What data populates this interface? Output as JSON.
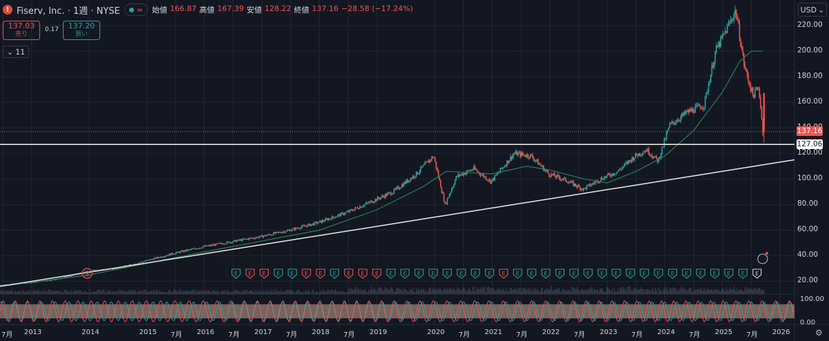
{
  "header": {
    "symbol_icon": "!",
    "title": "Fiserv, Inc. · 1週 · NYSE",
    "market_status": "≈",
    "ohlc": [
      {
        "k": "始値",
        "v": "166.87"
      },
      {
        "k": "高値",
        "v": "167.39"
      },
      {
        "k": "安値",
        "v": "128.22"
      },
      {
        "k": "終値",
        "v": "137.16"
      },
      {
        "k": "",
        "v": "−28.58 (−17.24%)"
      }
    ]
  },
  "trade": {
    "sell_price": "137.03",
    "sell_label": "売り",
    "spread": "0.17",
    "buy_price": "137.20",
    "buy_label": "買い"
  },
  "indicators_toggle": {
    "label": "11"
  },
  "currency": {
    "label": "USD"
  },
  "colors": {
    "bg": "#131722",
    "grid": "#232733",
    "candle_up": "#26a69a",
    "candle_down": "#ef5350",
    "ma": "#2e7d5b",
    "trend": "#e0e0e0",
    "price_tag": "#ef5350",
    "osc_band": "#8a7169"
  },
  "chart_data": {
    "type": "candlestick",
    "title": "Fiserv, Inc. 1週 NYSE",
    "ylim": [
      10,
      240
    ],
    "y_ticks": [
      "220.00",
      "200.00",
      "180.00",
      "160.00",
      "140.00",
      "120.00",
      "100.00",
      "80.00",
      "60.00",
      "40.00",
      "20.00"
    ],
    "y_tick_values": [
      220,
      200,
      180,
      160,
      140,
      120,
      100,
      80,
      60,
      40,
      20
    ],
    "x_ticks": [
      {
        "label": "7月",
        "t": 2012.5
      },
      {
        "label": "2013",
        "t": 2013.0
      },
      {
        "label": "2014",
        "t": 2014.0
      },
      {
        "label": "2015",
        "t": 2015.0
      },
      {
        "label": "7月",
        "t": 2015.5
      },
      {
        "label": "2016",
        "t": 2016.0
      },
      {
        "label": "7月",
        "t": 2016.5
      },
      {
        "label": "2017",
        "t": 2017.0
      },
      {
        "label": "7月",
        "t": 2017.5
      },
      {
        "label": "2018",
        "t": 2018.0
      },
      {
        "label": "7月",
        "t": 2018.5
      },
      {
        "label": "2019",
        "t": 2019.0
      },
      {
        "label": "2020",
        "t": 2020.0
      },
      {
        "label": "7月",
        "t": 2020.5
      },
      {
        "label": "2021",
        "t": 2021.0
      },
      {
        "label": "7月",
        "t": 2021.5
      },
      {
        "label": "2022",
        "t": 2022.0
      },
      {
        "label": "7月",
        "t": 2022.5
      },
      {
        "label": "2023",
        "t": 2023.0
      },
      {
        "label": "7月",
        "t": 2023.5
      },
      {
        "label": "2024",
        "t": 2024.0
      },
      {
        "label": "7月",
        "t": 2024.5
      },
      {
        "label": "2025",
        "t": 2025.0
      },
      {
        "label": "7月",
        "t": 2025.5
      },
      {
        "label": "2026",
        "t": 2026.0
      }
    ],
    "x_range": [
      2012.45,
      2026.25
    ],
    "price_path": [
      [
        2012.45,
        17
      ],
      [
        2013.0,
        19
      ],
      [
        2013.5,
        22
      ],
      [
        2014.0,
        28
      ],
      [
        2014.5,
        30
      ],
      [
        2015.0,
        36
      ],
      [
        2015.5,
        42
      ],
      [
        2016.0,
        47
      ],
      [
        2016.5,
        51
      ],
      [
        2017.0,
        55
      ],
      [
        2017.5,
        60
      ],
      [
        2018.0,
        66
      ],
      [
        2018.5,
        74
      ],
      [
        2018.9,
        82
      ],
      [
        2019.3,
        90
      ],
      [
        2019.7,
        104
      ],
      [
        2020.0,
        118
      ],
      [
        2020.2,
        80
      ],
      [
        2020.4,
        102
      ],
      [
        2020.7,
        108
      ],
      [
        2021.0,
        98
      ],
      [
        2021.4,
        120
      ],
      [
        2021.7,
        118
      ],
      [
        2022.0,
        104
      ],
      [
        2022.3,
        99
      ],
      [
        2022.6,
        92
      ],
      [
        2022.9,
        100
      ],
      [
        2023.2,
        106
      ],
      [
        2023.5,
        118
      ],
      [
        2023.7,
        123
      ],
      [
        2023.9,
        114
      ],
      [
        2024.1,
        142
      ],
      [
        2024.4,
        152
      ],
      [
        2024.7,
        158
      ],
      [
        2024.9,
        200
      ],
      [
        2025.1,
        218
      ],
      [
        2025.25,
        232
      ],
      [
        2025.4,
        188
      ],
      [
        2025.55,
        165
      ],
      [
        2025.65,
        172
      ],
      [
        2025.72,
        137
      ]
    ],
    "ma_path": [
      [
        2012.45,
        16
      ],
      [
        2014.0,
        25
      ],
      [
        2016.0,
        43
      ],
      [
        2018.0,
        60
      ],
      [
        2019.0,
        76
      ],
      [
        2019.8,
        94
      ],
      [
        2020.2,
        106
      ],
      [
        2020.6,
        105
      ],
      [
        2021.0,
        104
      ],
      [
        2021.6,
        110
      ],
      [
        2022.0,
        107
      ],
      [
        2022.6,
        100
      ],
      [
        2023.0,
        97
      ],
      [
        2023.5,
        106
      ],
      [
        2024.0,
        118
      ],
      [
        2024.5,
        138
      ],
      [
        2025.0,
        168
      ],
      [
        2025.3,
        192
      ],
      [
        2025.5,
        200
      ],
      [
        2025.7,
        200
      ]
    ],
    "trendline": [
      [
        2012.45,
        16
      ],
      [
        2026.25,
        115
      ]
    ],
    "horizontal_level": 127.06,
    "last_price": 137.16,
    "last_price_label": "137.16",
    "level_label": "127.06",
    "events": [
      "S",
      "E",
      "E",
      "E",
      "E",
      "E",
      "E",
      "E",
      "E",
      "E",
      "E",
      "E",
      "E",
      "E",
      "E",
      "E",
      "E",
      "E",
      "E",
      "E",
      "E",
      "E",
      "E",
      "E",
      "E",
      "E",
      "E",
      "E",
      "E",
      "E",
      "E",
      "E",
      "E",
      "E",
      "E",
      "E",
      "E",
      "E",
      "E"
    ],
    "oscillator": {
      "ylim": [
        0,
        100
      ],
      "ticks": [
        "100.00",
        "0.00"
      ],
      "tick_values": [
        100,
        0
      ],
      "band": [
        20,
        80
      ]
    }
  }
}
